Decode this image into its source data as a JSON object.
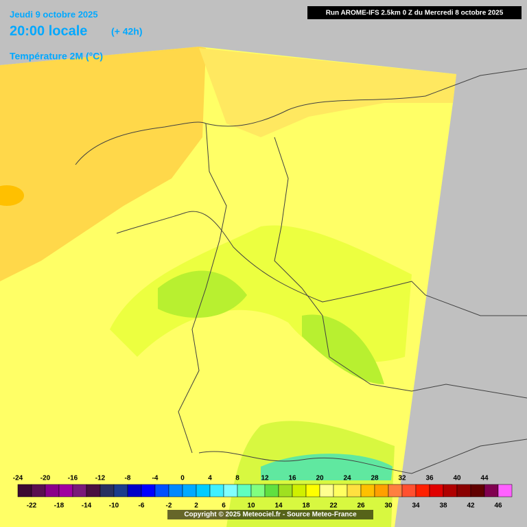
{
  "header": {
    "date": "Jeudi 9 octobre 2025",
    "time": "20:00 locale",
    "lead": "(+ 42h)",
    "variable": "Température 2M (°C)"
  },
  "run_info": "Run AROME-IFS 2.5km 0 Z du Mercredi 8 octobre 2025",
  "copyright": "Copyright © 2025 Meteociel.fr - Source Meteo-France",
  "legend": {
    "items": [
      {
        "value": -24,
        "color": "#3c0a32"
      },
      {
        "value": -22,
        "color": "#5a1050"
      },
      {
        "value": -20,
        "color": "#8a008a"
      },
      {
        "value": -18,
        "color": "#a000a0"
      },
      {
        "value": -16,
        "color": "#7a1a7a"
      },
      {
        "value": -14,
        "color": "#4a1040"
      },
      {
        "value": -12,
        "color": "#283060"
      },
      {
        "value": -10,
        "color": "#1c3c8c"
      },
      {
        "value": -8,
        "color": "#0000c8"
      },
      {
        "value": -6,
        "color": "#0000ff"
      },
      {
        "value": -4,
        "color": "#0050ff"
      },
      {
        "value": -2,
        "color": "#0088ff"
      },
      {
        "value": 0,
        "color": "#00aaff"
      },
      {
        "value": 2,
        "color": "#00ccff"
      },
      {
        "value": 4,
        "color": "#40f0ff"
      },
      {
        "value": 6,
        "color": "#80ffff"
      },
      {
        "value": 8,
        "color": "#60ffc0"
      },
      {
        "value": 10,
        "color": "#80ff80"
      },
      {
        "value": 12,
        "color": "#60e040"
      },
      {
        "value": 14,
        "color": "#a0e020"
      },
      {
        "value": 16,
        "color": "#d0f000"
      },
      {
        "value": 18,
        "color": "#ffff00"
      },
      {
        "value": 20,
        "color": "#ffff90"
      },
      {
        "value": 22,
        "color": "#ffff60"
      },
      {
        "value": 24,
        "color": "#ffe040"
      },
      {
        "value": 26,
        "color": "#ffc000"
      },
      {
        "value": 28,
        "color": "#ffa000"
      },
      {
        "value": 30,
        "color": "#ff8040"
      },
      {
        "value": 32,
        "color": "#ff5030"
      },
      {
        "value": 34,
        "color": "#ff2000"
      },
      {
        "value": 36,
        "color": "#e00000"
      },
      {
        "value": 38,
        "color": "#b00000"
      },
      {
        "value": 40,
        "color": "#8a0000"
      },
      {
        "value": 42,
        "color": "#600000"
      },
      {
        "value": 44,
        "color": "#800050"
      },
      {
        "value": 46,
        "color": "#ff60ff"
      }
    ]
  }
}
